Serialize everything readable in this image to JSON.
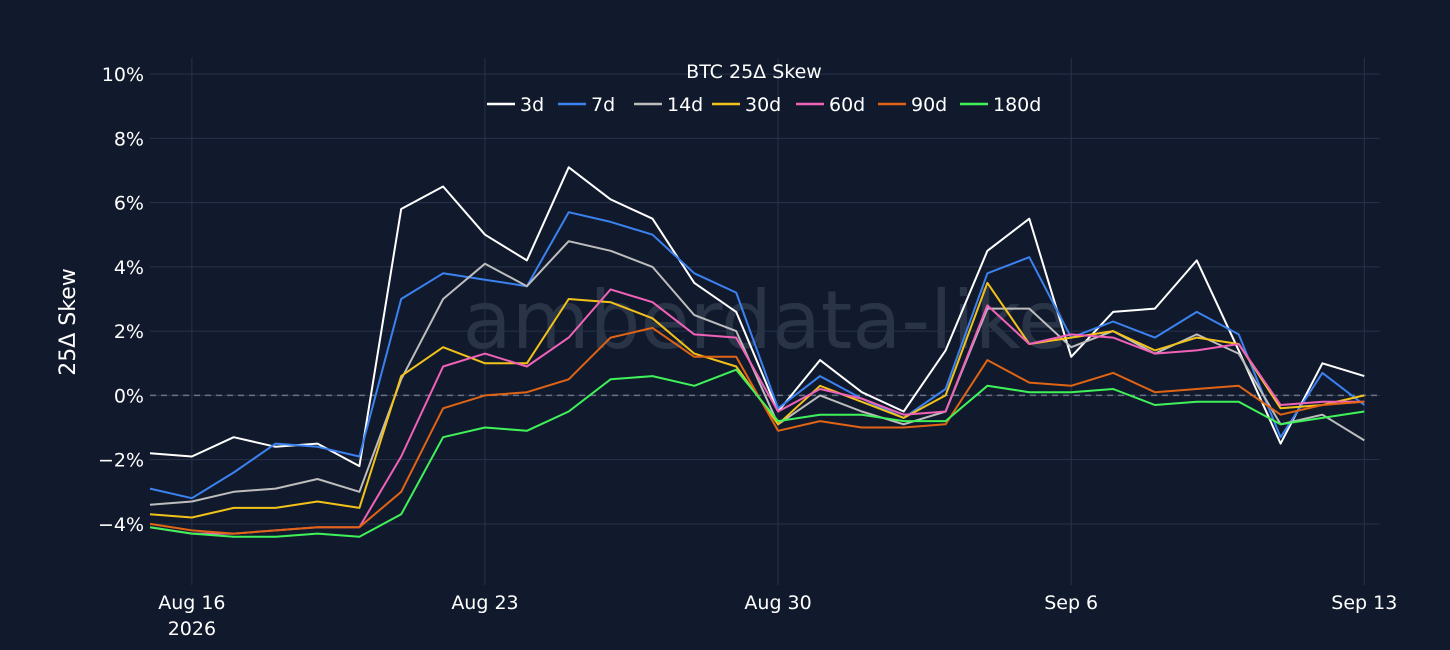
{
  "chart_data": {
    "type": "line",
    "title": "BTC 25Δ Skew",
    "ylabel": "25Δ Skew",
    "xlabel": "",
    "watermark": "amberdata-like",
    "ylim": [
      -5.9,
      10.5
    ],
    "y_ticks": [
      {
        "value": 10,
        "label": "10%"
      },
      {
        "value": 8,
        "label": "8%"
      },
      {
        "value": 6,
        "label": "6%"
      },
      {
        "value": 4,
        "label": "4%"
      },
      {
        "value": 2,
        "label": "2%"
      },
      {
        "value": 0,
        "label": "0%"
      },
      {
        "value": -2,
        "label": "−2%"
      },
      {
        "value": -4,
        "label": "−4%"
      }
    ],
    "x_range": [
      "2026-08-15",
      "2026-09-13T09:00"
    ],
    "x_ticks": [
      {
        "date": "2026-08-16",
        "label": "Aug 16",
        "sublabel": "2026"
      },
      {
        "date": "2026-08-23",
        "label": "Aug 23",
        "sublabel": ""
      },
      {
        "date": "2026-08-30",
        "label": "Aug 30",
        "sublabel": ""
      },
      {
        "date": "2026-09-06",
        "label": "Sep 6",
        "sublabel": ""
      },
      {
        "date": "2026-09-13",
        "label": "Sep 13",
        "sublabel": ""
      }
    ],
    "grid": true,
    "zero_line": "dashed",
    "legend_position": "top-center",
    "x_dates": [
      "2026-08-15",
      "2026-08-16",
      "2026-08-17",
      "2026-08-18",
      "2026-08-19",
      "2026-08-20",
      "2026-08-21",
      "2026-08-22",
      "2026-08-23",
      "2026-08-24",
      "2026-08-25",
      "2026-08-26",
      "2026-08-27",
      "2026-08-28",
      "2026-08-29",
      "2026-08-30",
      "2026-08-31",
      "2026-09-01",
      "2026-09-02",
      "2026-09-03",
      "2026-09-04",
      "2026-09-05",
      "2026-09-06",
      "2026-09-07",
      "2026-09-08",
      "2026-09-09",
      "2026-09-10",
      "2026-09-11",
      "2026-09-12",
      "2026-09-13"
    ],
    "series": [
      {
        "name": "3d",
        "color": "#ffffff",
        "values": [
          -1.8,
          -1.9,
          -1.3,
          -1.6,
          -1.5,
          -2.2,
          5.8,
          6.5,
          5.0,
          4.2,
          7.1,
          6.1,
          5.5,
          3.5,
          2.6,
          -0.5,
          1.1,
          0.1,
          -0.5,
          1.4,
          4.5,
          5.5,
          1.2,
          2.6,
          2.7,
          4.2,
          1.4,
          -1.5,
          1.0,
          0.6
        ]
      },
      {
        "name": "7d",
        "color": "#3b82f0",
        "values": [
          -2.9,
          -3.2,
          -2.4,
          -1.5,
          -1.6,
          -1.9,
          3.0,
          3.8,
          3.6,
          3.4,
          5.7,
          5.4,
          5.0,
          3.8,
          3.2,
          -0.4,
          0.6,
          -0.1,
          -0.7,
          0.2,
          3.8,
          4.3,
          1.8,
          2.3,
          1.8,
          2.6,
          1.9,
          -1.3,
          0.7,
          -0.3
        ]
      },
      {
        "name": "14d",
        "color": "#bdbdbd",
        "values": [
          -3.4,
          -3.3,
          -3.0,
          -2.9,
          -2.6,
          -3.0,
          0.5,
          3.0,
          4.1,
          3.4,
          4.8,
          4.5,
          4.0,
          2.5,
          2.0,
          -0.9,
          0.0,
          -0.5,
          -0.9,
          -0.5,
          2.7,
          2.7,
          1.5,
          2.0,
          1.3,
          1.9,
          1.3,
          -0.9,
          -0.6,
          -1.4
        ]
      },
      {
        "name": "30d",
        "color": "#f2c21a",
        "values": [
          -3.7,
          -3.8,
          -3.5,
          -3.5,
          -3.3,
          -3.5,
          0.6,
          1.5,
          1.0,
          1.0,
          3.0,
          2.9,
          2.4,
          1.3,
          0.9,
          -0.9,
          0.3,
          -0.2,
          -0.7,
          0.0,
          3.5,
          1.6,
          1.8,
          2.0,
          1.4,
          1.8,
          1.6,
          -0.4,
          -0.3,
          0.0
        ]
      },
      {
        "name": "60d",
        "color": "#f062b8",
        "values": [
          -4.1,
          -4.3,
          -4.3,
          -4.2,
          -4.1,
          -4.1,
          -1.9,
          0.9,
          1.3,
          0.9,
          1.8,
          3.3,
          2.9,
          1.9,
          1.8,
          -0.5,
          0.2,
          -0.1,
          -0.6,
          -0.5,
          2.8,
          1.6,
          1.9,
          1.8,
          1.3,
          1.4,
          1.6,
          -0.3,
          -0.2,
          -0.2
        ]
      },
      {
        "name": "90d",
        "color": "#e06414",
        "values": [
          -4.0,
          -4.2,
          -4.3,
          -4.2,
          -4.1,
          -4.1,
          -3.0,
          -0.4,
          0.0,
          0.1,
          0.5,
          1.8,
          2.1,
          1.2,
          1.2,
          -1.1,
          -0.8,
          -1.0,
          -1.0,
          -0.9,
          1.1,
          0.4,
          0.3,
          0.7,
          0.1,
          0.2,
          0.3,
          -0.6,
          -0.3,
          -0.2
        ]
      },
      {
        "name": "180d",
        "color": "#3ff25a",
        "values": [
          -4.1,
          -4.3,
          -4.4,
          -4.4,
          -4.3,
          -4.4,
          -3.7,
          -1.3,
          -1.0,
          -1.1,
          -0.5,
          0.5,
          0.6,
          0.3,
          0.8,
          -0.8,
          -0.6,
          -0.6,
          -0.8,
          -0.8,
          0.3,
          0.1,
          0.1,
          0.2,
          -0.3,
          -0.2,
          -0.2,
          -0.9,
          -0.7,
          -0.5
        ]
      }
    ]
  }
}
